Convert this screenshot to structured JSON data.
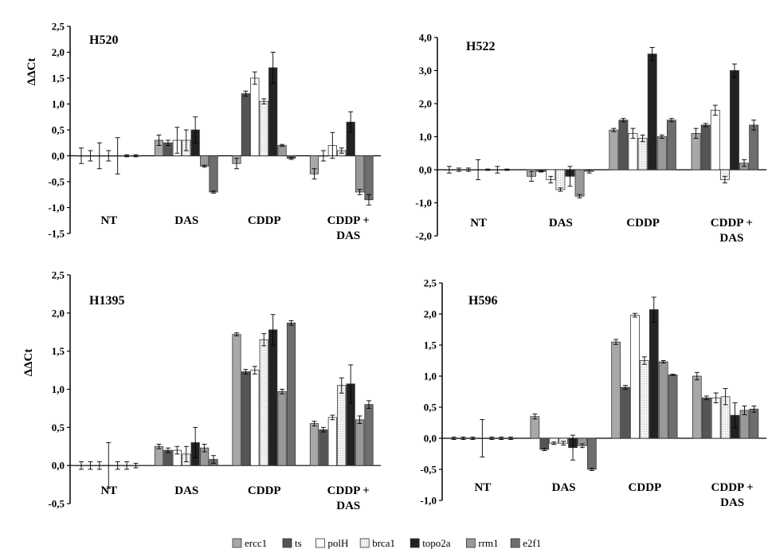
{
  "legend": [
    {
      "label": "ercc1",
      "color": "#a8a8a8"
    },
    {
      "label": "ts",
      "color": "#555555"
    },
    {
      "label": "polH",
      "color": "#ffffff"
    },
    {
      "label": "brca1",
      "color": "#f2f2f2"
    },
    {
      "label": "topo2a",
      "color": "#222222"
    },
    {
      "label": "rrm1",
      "color": "#999999"
    },
    {
      "label": "e2f1",
      "color": "#6e6e6e"
    }
  ],
  "chart_data": [
    {
      "type": "bar",
      "title": "H520",
      "ylabel": "ΔΔCt",
      "ylim": [
        -1.5,
        2.5
      ],
      "yticks": [
        "2,5",
        "2,0",
        "1,5",
        "1,0",
        "0,5",
        "0,0",
        "-0,5",
        "-1,0",
        "-1,5"
      ],
      "categories": [
        "NT",
        "DAS",
        "CDDP",
        "CDDP +\nDAS"
      ],
      "series": [
        {
          "name": "ercc1",
          "values": [
            0.0,
            0.3,
            -0.15,
            -0.35
          ],
          "errors": [
            0.15,
            0.1,
            0.1,
            0.1
          ]
        },
        {
          "name": "ts",
          "values": [
            0.0,
            0.25,
            1.2,
            0.0
          ],
          "errors": [
            0.1,
            0.05,
            0.05,
            0.1
          ]
        },
        {
          "name": "polH",
          "values": [
            0.0,
            0.3,
            1.5,
            0.2
          ],
          "errors": [
            0.25,
            0.25,
            0.12,
            0.25
          ]
        },
        {
          "name": "brca1",
          "values": [
            0.0,
            0.3,
            1.05,
            0.1
          ],
          "errors": [
            0.1,
            0.2,
            0.05,
            0.05
          ]
        },
        {
          "name": "topo2a",
          "values": [
            0.0,
            0.5,
            1.7,
            0.65
          ],
          "errors": [
            0.35,
            0.25,
            0.3,
            0.2
          ]
        },
        {
          "name": "rrm1",
          "values": [
            0.0,
            -0.2,
            0.2,
            -0.7
          ],
          "errors": [
            0.02,
            0.02,
            0.02,
            0.05
          ]
        },
        {
          "name": "e2f1",
          "values": [
            0.0,
            -0.7,
            -0.05,
            -0.85
          ],
          "errors": [
            0.02,
            0.02,
            0.02,
            0.1
          ]
        }
      ]
    },
    {
      "type": "bar",
      "title": "H522",
      "ylabel": "",
      "ylim": [
        -2.0,
        4.0
      ],
      "yticks": [
        "4,0",
        "3,0",
        "2,0",
        "1,0",
        "0,0",
        "-1,0",
        "-2,0"
      ],
      "categories": [
        "NT",
        "DAS",
        "CDDP",
        "CDDP +\nDAS"
      ],
      "series": [
        {
          "name": "ercc1",
          "values": [
            0.0,
            -0.2,
            1.2,
            1.1
          ],
          "errors": [
            0.1,
            0.15,
            0.05,
            0.15
          ]
        },
        {
          "name": "ts",
          "values": [
            0.0,
            -0.05,
            1.5,
            1.35
          ],
          "errors": [
            0.05,
            0.02,
            0.05,
            0.05
          ]
        },
        {
          "name": "polH",
          "values": [
            0.0,
            -0.3,
            1.1,
            1.8
          ],
          "errors": [
            0.05,
            0.1,
            0.15,
            0.15
          ]
        },
        {
          "name": "brca1",
          "values": [
            0.0,
            -0.6,
            0.95,
            -0.3
          ],
          "errors": [
            0.3,
            0.05,
            0.1,
            0.1
          ]
        },
        {
          "name": "topo2a",
          "values": [
            0.0,
            -0.2,
            3.5,
            3.0
          ],
          "errors": [
            0.02,
            0.3,
            0.2,
            0.2
          ]
        },
        {
          "name": "rrm1",
          "values": [
            0.0,
            -0.8,
            1.0,
            0.2
          ],
          "errors": [
            0.1,
            0.05,
            0.05,
            0.1
          ]
        },
        {
          "name": "e2f1",
          "values": [
            0.0,
            -0.05,
            1.5,
            1.35
          ],
          "errors": [
            0.02,
            0.05,
            0.05,
            0.15
          ]
        }
      ]
    },
    {
      "type": "bar",
      "title": "H1395",
      "ylabel": "ΔΔCt",
      "ylim": [
        -0.5,
        2.5
      ],
      "yticks": [
        "2,5",
        "2,0",
        "1,5",
        "1,0",
        "0,5",
        "0,0",
        "-0,5"
      ],
      "categories": [
        "NT",
        "DAS",
        "CDDP",
        "CDDP +\nDAS"
      ],
      "series": [
        {
          "name": "ercc1",
          "values": [
            0.0,
            0.25,
            1.72,
            0.55
          ],
          "errors": [
            0.05,
            0.03,
            0.02,
            0.03
          ]
        },
        {
          "name": "ts",
          "values": [
            0.0,
            0.2,
            1.23,
            0.47
          ],
          "errors": [
            0.05,
            0.03,
            0.03,
            0.03
          ]
        },
        {
          "name": "polH",
          "values": [
            0.0,
            0.2,
            1.25,
            0.63
          ],
          "errors": [
            0.05,
            0.05,
            0.05,
            0.03
          ]
        },
        {
          "name": "brca1",
          "values": [
            0.0,
            0.15,
            1.65,
            1.05
          ],
          "errors": [
            0.3,
            0.1,
            0.08,
            0.1
          ]
        },
        {
          "name": "topo2a",
          "values": [
            0.0,
            0.3,
            1.78,
            1.07
          ],
          "errors": [
            0.05,
            0.2,
            0.2,
            0.25
          ]
        },
        {
          "name": "rrm1",
          "values": [
            0.0,
            0.23,
            0.97,
            0.6
          ],
          "errors": [
            0.05,
            0.05,
            0.03,
            0.05
          ]
        },
        {
          "name": "e2f1",
          "values": [
            0.0,
            0.08,
            1.87,
            0.8
          ],
          "errors": [
            0.03,
            0.05,
            0.03,
            0.05
          ]
        }
      ]
    },
    {
      "type": "bar",
      "title": "H596",
      "ylabel": "",
      "ylim": [
        -1.0,
        2.5
      ],
      "yticks": [
        "2,5",
        "2,0",
        "1,5",
        "1,0",
        "0,5",
        "0,0",
        "-0,5",
        "-1,0"
      ],
      "categories": [
        "NT",
        "DAS",
        "CDDP",
        "CDDP +\nDAS"
      ],
      "series": [
        {
          "name": "ercc1",
          "values": [
            0.0,
            0.35,
            1.55,
            1.0
          ],
          "errors": [
            0.02,
            0.04,
            0.04,
            0.06
          ]
        },
        {
          "name": "ts",
          "values": [
            0.0,
            -0.18,
            0.82,
            0.65
          ],
          "errors": [
            0.02,
            0.02,
            0.03,
            0.03
          ]
        },
        {
          "name": "polH",
          "values": [
            0.0,
            -0.08,
            1.98,
            0.65
          ],
          "errors": [
            0.02,
            0.02,
            0.03,
            0.08
          ]
        },
        {
          "name": "brca1",
          "values": [
            0.0,
            -0.08,
            1.25,
            0.67
          ],
          "errors": [
            0.3,
            0.03,
            0.06,
            0.13
          ]
        },
        {
          "name": "topo2a",
          "values": [
            0.0,
            -0.15,
            2.07,
            0.37
          ],
          "errors": [
            0.02,
            0.2,
            0.2,
            0.2
          ]
        },
        {
          "name": "rrm1",
          "values": [
            0.0,
            -0.12,
            1.23,
            0.45
          ],
          "errors": [
            0.02,
            0.03,
            0.02,
            0.07
          ]
        },
        {
          "name": "e2f1",
          "values": [
            0.0,
            -0.5,
            1.02,
            0.47
          ],
          "errors": [
            0.02,
            0.02,
            0.01,
            0.05
          ]
        }
      ]
    }
  ]
}
